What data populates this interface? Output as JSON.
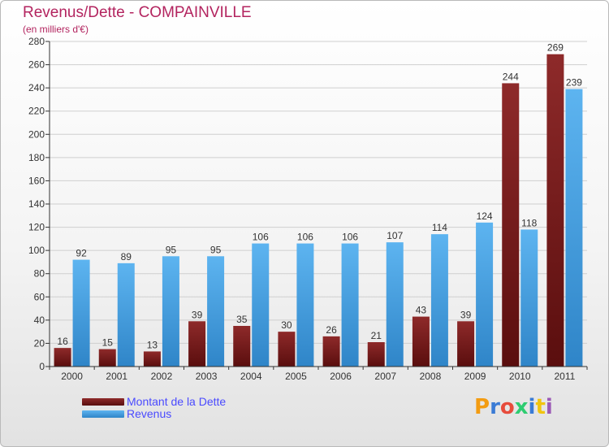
{
  "title": "Revenus/Dette - COMPAINVILLE",
  "subtitle": "(en milliers d'€)",
  "colors": {
    "debt": "#7a1f1f",
    "revenue": "#4aa3e6",
    "title": "#b3245f",
    "legend_text": "#4a4aff"
  },
  "chart_data": {
    "type": "bar",
    "categories": [
      "2000",
      "2001",
      "2002",
      "2003",
      "2004",
      "2005",
      "2006",
      "2007",
      "2008",
      "2009",
      "2010",
      "2011"
    ],
    "series": [
      {
        "name": "Montant de la Dette",
        "values": [
          16,
          15,
          13,
          39,
          35,
          30,
          26,
          21,
          43,
          39,
          244,
          269
        ]
      },
      {
        "name": "Revenus",
        "values": [
          92,
          89,
          95,
          95,
          106,
          106,
          106,
          107,
          114,
          124,
          118,
          239
        ]
      }
    ],
    "ylim": [
      0,
      280
    ],
    "yticks": [
      0,
      20,
      40,
      60,
      80,
      100,
      120,
      140,
      160,
      180,
      200,
      220,
      240,
      260,
      280
    ],
    "grid": true,
    "legend": "bottom-left"
  },
  "logo": {
    "letters": [
      "P",
      "r",
      "o",
      "x",
      "i",
      "t",
      "i"
    ],
    "colors": [
      "#f39c12",
      "#3a7bd5",
      "#e74c3c",
      "#2ecc71",
      "#3a7bd5",
      "#f1c40f",
      "#9b59b6"
    ]
  }
}
